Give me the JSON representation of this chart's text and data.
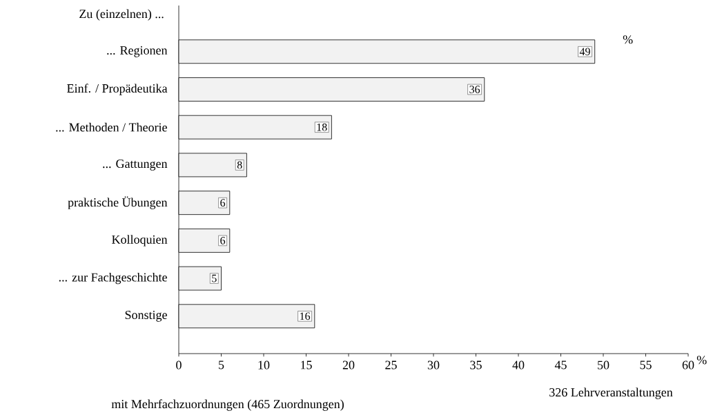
{
  "chart_data": {
    "type": "bar",
    "orientation": "horizontal",
    "color": "#f2f2f2",
    "categories": [
      "... Regionen",
      "Einf. / Propädeutika",
      "... Methoden / Theorie",
      "... Gattungen",
      "praktische Übungen",
      "Kolloquien",
      "... zur Fachgeschichte",
      "Sonstige"
    ],
    "values": [
      49,
      36,
      18,
      8,
      6,
      6,
      5,
      16
    ],
    "data_labels": true,
    "xlim": [
      0,
      60
    ],
    "xticks": [
      0,
      5,
      10,
      15,
      20,
      25,
      30,
      35,
      40,
      45,
      50,
      55,
      60
    ],
    "xlabel": "%",
    "annotations": [
      "Zu (einzelnen) ...",
      "%",
      "326 Lehrveranstaltungen",
      "mit Mehrfachzuordnungen (465 Zuordnungen)"
    ]
  }
}
